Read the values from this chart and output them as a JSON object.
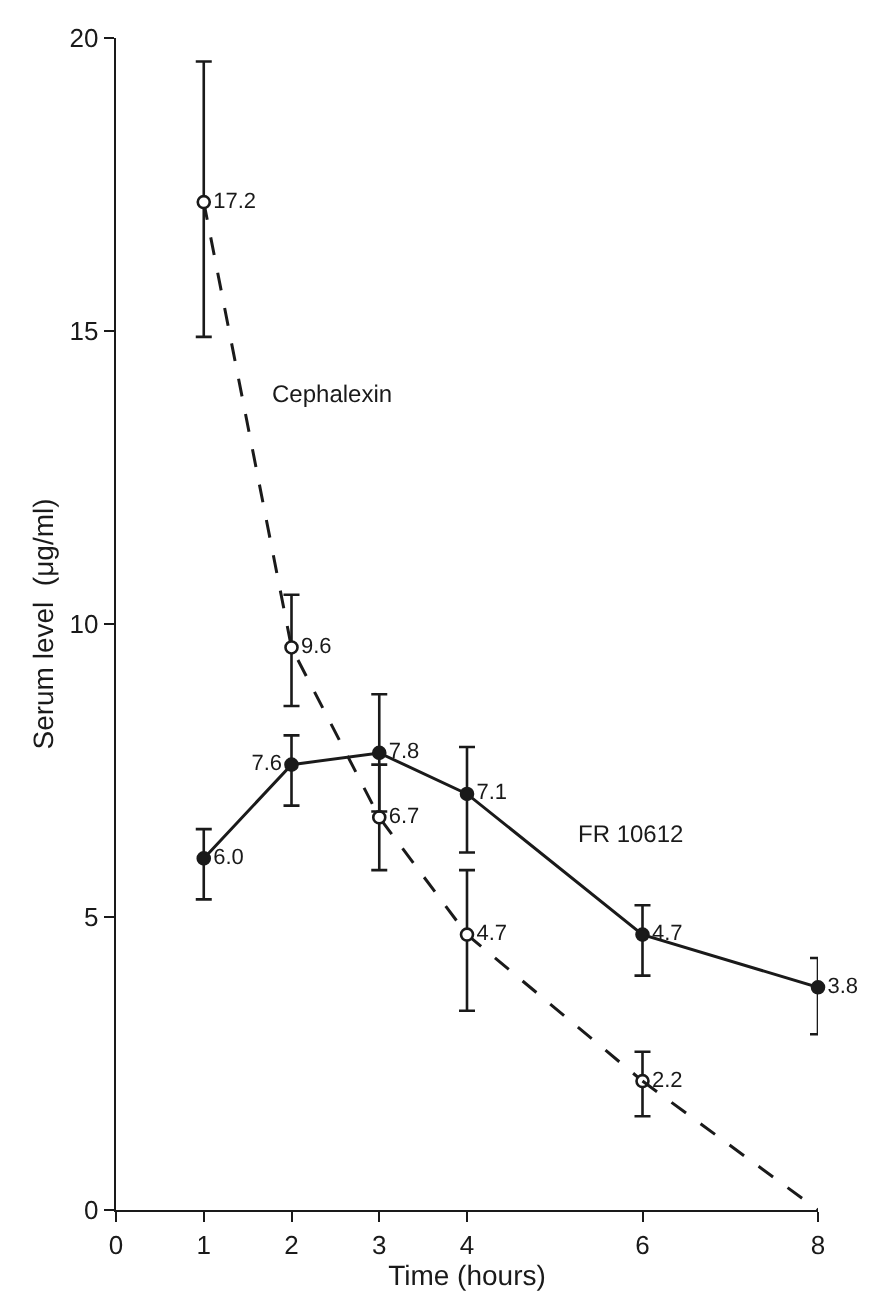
{
  "chart_data": {
    "type": "line",
    "xlabel": "Time (hours)",
    "ylabel": "Serum level  (μg/ml)",
    "xlim": [
      0,
      8
    ],
    "xticks": [
      0,
      1,
      2,
      3,
      4,
      6,
      8
    ],
    "ylim": [
      0,
      20
    ],
    "yticks": [
      0,
      5,
      10,
      15,
      20
    ],
    "grid": false,
    "legend": false,
    "series": [
      {
        "name": "Cephalexin",
        "color": "#1a1a1a",
        "x": [
          1,
          2,
          3,
          4,
          6
        ],
        "values": [
          17.2,
          9.6,
          6.7,
          4.7,
          2.2
        ],
        "errors": [
          [
            14.9,
            19.6
          ],
          [
            8.6,
            10.5
          ],
          [
            5.8,
            7.6
          ],
          [
            3.4,
            5.8
          ],
          [
            1.6,
            2.7
          ]
        ],
        "value_labels": [
          "17.2",
          "9.6",
          "6.7",
          "4.7",
          "2.2"
        ],
        "marker": "circle",
        "line_style": "dashed"
      },
      {
        "type": "line",
        "color": "#1a1a1a",
        "x": [
          6,
          8
        ],
        "values": [
          2.2,
          0
        ],
        "marker": "none",
        "line_style": "dashed"
      },
      {
        "name": "FR 10612",
        "color": "#1a1a1a",
        "x": [
          1,
          2,
          3,
          4,
          6,
          8
        ],
        "values": [
          6.0,
          7.6,
          7.8,
          7.1,
          4.7,
          3.8
        ],
        "errors": [
          [
            5.3,
            6.5
          ],
          [
            6.9,
            8.1
          ],
          [
            6.8,
            8.8
          ],
          [
            6.1,
            7.9
          ],
          [
            4.0,
            5.2
          ],
          [
            3.0,
            4.3
          ]
        ],
        "value_labels": [
          "6.0",
          "7.6",
          "7.8",
          "7.1",
          "4.7",
          "3.8"
        ],
        "marker": "circle",
        "line_style": "solid"
      }
    ]
  }
}
